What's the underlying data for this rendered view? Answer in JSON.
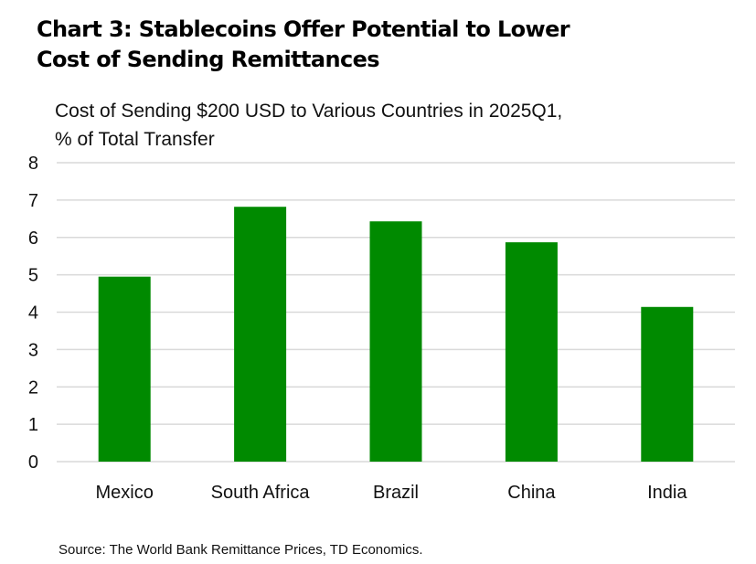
{
  "title_lines": [
    "Chart 3: Stablecoins Offer Potential to Lower",
    "Cost of Sending Remittances"
  ],
  "subtitle_lines": [
    "Cost of Sending $200 USD to Various Countries in 2025Q1,",
    "% of Total Transfer"
  ],
  "source": "Source: The World Bank Remittance Prices, TD Economics.",
  "colors": {
    "bar": "#008a00",
    "grid": "#d9d9d9"
  },
  "chart_data": {
    "type": "bar",
    "title": "Chart 3: Stablecoins Offer Potential to Lower Cost of Sending Remittances",
    "subtitle": "Cost of Sending $200 USD to Various Countries in 2025Q1, % of Total Transfer",
    "categories": [
      "Mexico",
      "South Africa",
      "Brazil",
      "China",
      "India"
    ],
    "values": [
      4.95,
      6.82,
      6.43,
      5.87,
      4.14
    ],
    "ylim": [
      0,
      8
    ],
    "yticks": [
      "0",
      "1",
      "2",
      "3",
      "4",
      "5",
      "6",
      "7",
      "8"
    ],
    "grid": true,
    "legend": "none"
  }
}
